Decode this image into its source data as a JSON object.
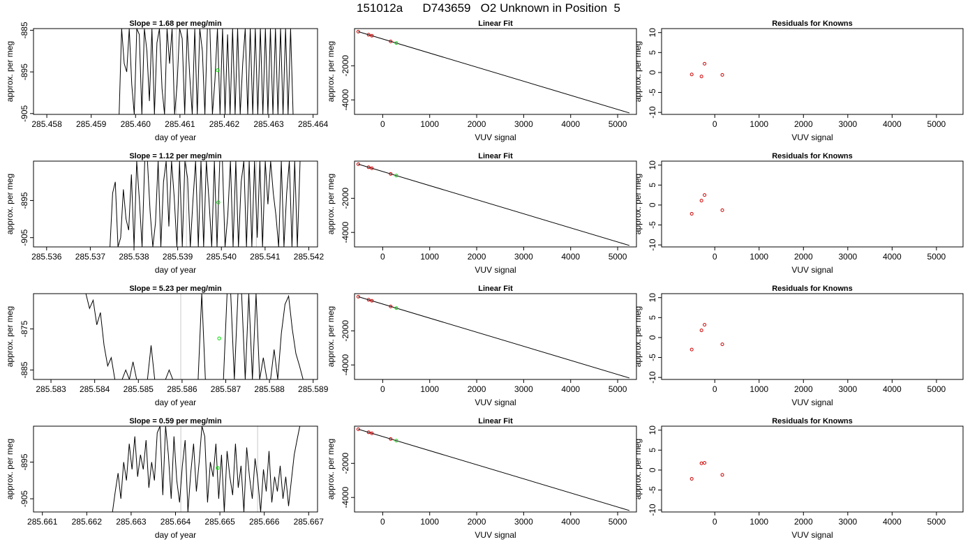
{
  "figure": {
    "title": "151012a      D743659   O2 Unknown in Position  5"
  },
  "colors": {
    "trace": "#000000",
    "unknown_point": "#00dd00",
    "known_point": "#cc0000",
    "marker_line": "#c8c8c8"
  },
  "chart_data": [
    {
      "type": "line",
      "title": "Slope =  1.68  per meg/min",
      "xlabel": "day of year",
      "ylabel": "approx. per meg",
      "xlim": [
        285.4577,
        285.4641
      ],
      "ylim": [
        -905.2,
        -884.6
      ],
      "xticks": [
        "285.458",
        "285.459",
        "285.460",
        "285.461",
        "285.462",
        "285.463",
        "285.464"
      ],
      "yticks": [
        "-885",
        "-895",
        "-905"
      ],
      "marker_x": [
        285.46092
      ],
      "unknown_point": {
        "x": 285.46185,
        "y": -894.6
      },
      "series": [
        {
          "x_start": 285.45963,
          "x_end": 285.46355,
          "values": [
            -905.2,
            -884.6,
            -893,
            -895,
            -884.6,
            -898,
            -905.2,
            -884.6,
            -886,
            -905.2,
            -884.6,
            -890,
            -902,
            -884.6,
            -905.2,
            -888,
            -884.6,
            -899,
            -905.2,
            -884.6,
            -893,
            -884.6,
            -905.2,
            -898,
            -884.6,
            -887,
            -905.2,
            -884.6,
            -896,
            -905.2,
            -884.6,
            -905.2,
            -884.6,
            -890,
            -905.2,
            -884.6,
            -884.6,
            -905.2,
            -897,
            -884.6,
            -905.2,
            -884.6,
            -905.2,
            -886,
            -905.2,
            -884.6,
            -905.2,
            -884.6,
            -905.2,
            -893,
            -884.6,
            -905.2,
            -884.6,
            -905.2,
            -884.6,
            -905.2,
            -884.6,
            -905.2,
            -884.6,
            -905.2,
            -884.6,
            -905.2,
            -884.6,
            -905.2,
            -884.6,
            -905.2,
            -884.6,
            -905.2,
            -884.6,
            -905.2
          ]
        }
      ]
    },
    {
      "type": "scatter",
      "title": "Linear Fit",
      "xlabel": "VUV signal",
      "ylabel": "approx. per meg",
      "xlim": [
        -600,
        5400
      ],
      "ylim": [
        -4850,
        180
      ],
      "xticks": [
        0,
        1000,
        2000,
        3000,
        4000,
        5000
      ],
      "yticks": [
        -2000,
        -4000
      ],
      "fit_line": {
        "x": [
          -520,
          5250
        ],
        "y": [
          0,
          -4765
        ]
      },
      "known_points": {
        "x": [
          -520,
          -300,
          -230,
          170
        ],
        "y": [
          0,
          -180,
          -240,
          -570
        ]
      },
      "unknown_point": {
        "x": 290,
        "y": -670
      }
    },
    {
      "type": "scatter",
      "title": "Residuals for Knowns",
      "xlabel": "VUV signal",
      "ylabel": "approx. per meg",
      "xlim": [
        -1200,
        5600
      ],
      "ylim": [
        -10.5,
        11
      ],
      "xticks": [
        0,
        1000,
        2000,
        3000,
        4000,
        5000
      ],
      "yticks": [
        -10,
        -5,
        0,
        5,
        10
      ],
      "points": {
        "x": [
          -520,
          -300,
          -230,
          170
        ],
        "y": [
          -0.5,
          -1.0,
          2.2,
          -0.6
        ]
      }
    },
    {
      "type": "line",
      "title": "Slope =  1.12  per meg/min",
      "xlabel": "day of year",
      "ylabel": "approx. per meg",
      "xlim": [
        285.5357,
        285.5422
      ],
      "ylim": [
        -907.5,
        -884.4
      ],
      "xticks": [
        "285.536",
        "285.537",
        "285.538",
        "285.539",
        "285.540",
        "285.541",
        "285.542"
      ],
      "yticks": [
        "-895",
        "-905"
      ],
      "marker_x": [
        285.5392,
        285.5408
      ],
      "unknown_point": {
        "x": 285.53993,
        "y": -895.5
      },
      "series": [
        {
          "x_start": 285.53745,
          "x_end": 285.5418,
          "values": [
            -907.5,
            -893,
            -890,
            -907.5,
            -905,
            -892,
            -900,
            -903,
            -888,
            -907.5,
            -884.4,
            -895,
            -907.5,
            -884.4,
            -884.4,
            -898,
            -907.5,
            -901,
            -884.4,
            -907.5,
            -890,
            -884.4,
            -902,
            -884.4,
            -894,
            -907.5,
            -884.4,
            -907.5,
            -884.4,
            -889,
            -907.5,
            -895,
            -884.4,
            -907.5,
            -884.4,
            -907.5,
            -884.4,
            -895,
            -907.5,
            -884.4,
            -907.5,
            -884.4,
            -884.4,
            -907.5,
            -899,
            -884.4,
            -907.5,
            -884.4,
            -907.5,
            -890,
            -884.4,
            -907.5,
            -884.4,
            -907.5,
            -884.4,
            -905,
            -884.4,
            -907.5,
            -884.4,
            -896,
            -884.4,
            -893,
            -899,
            -907.5,
            -884.4,
            -907.5,
            -893,
            -884.4,
            -907.5,
            -884.4,
            -907.5,
            -884.4
          ]
        }
      ]
    },
    {
      "type": "scatter",
      "title": "Linear Fit",
      "xlabel": "VUV signal",
      "ylabel": "approx. per meg",
      "xlim": [
        -600,
        5400
      ],
      "ylim": [
        -4850,
        180
      ],
      "xticks": [
        0,
        1000,
        2000,
        3000,
        4000,
        5000
      ],
      "yticks": [
        -2000,
        -4000
      ],
      "fit_line": {
        "x": [
          -520,
          5250
        ],
        "y": [
          0,
          -4765
        ]
      },
      "known_points": {
        "x": [
          -520,
          -300,
          -230,
          170
        ],
        "y": [
          0,
          -180,
          -240,
          -570
        ]
      },
      "unknown_point": {
        "x": 290,
        "y": -670
      }
    },
    {
      "type": "scatter",
      "title": "Residuals for Knowns",
      "xlabel": "VUV signal",
      "ylabel": "approx. per meg",
      "xlim": [
        -1200,
        5600
      ],
      "ylim": [
        -10.5,
        11
      ],
      "xticks": [
        0,
        1000,
        2000,
        3000,
        4000,
        5000
      ],
      "yticks": [
        -10,
        -5,
        0,
        5,
        10
      ],
      "points": {
        "x": [
          -520,
          -300,
          -230,
          170
        ],
        "y": [
          -2.2,
          1.1,
          2.5,
          -1.3
        ]
      }
    },
    {
      "type": "line",
      "title": "Slope =  5.23  per meg/min",
      "xlabel": "day of year",
      "ylabel": "approx. per meg",
      "xlim": [
        285.5826,
        285.5891
      ],
      "ylim": [
        -887.3,
        -866.4
      ],
      "xticks": [
        "285.583",
        "285.584",
        "285.585",
        "285.586",
        "285.587",
        "285.588",
        "285.589"
      ],
      "yticks": [
        "-875",
        "-885"
      ],
      "marker_x": [
        285.58597
      ],
      "unknown_point": {
        "x": 285.58685,
        "y": -877.3
      },
      "series": [
        {
          "x_start": 285.5838,
          "x_end": 285.58877,
          "values": [
            -866.4,
            -870,
            -868,
            -874,
            -871,
            -879,
            -884,
            -882,
            -887.3,
            -887.3,
            -887.3,
            -885,
            -887.3,
            -883,
            -887.3,
            -887.3,
            -887.3,
            -887.3,
            -879,
            -887.3,
            -887.3,
            -887.3,
            -887.3,
            -885,
            -887.3,
            -887.3,
            -887.3,
            -887.3,
            -887.3,
            -887.3,
            -887.3,
            -887.3,
            -866.4,
            -887.3,
            -887.3,
            -887.3,
            -887.3,
            -887.3,
            -887.3,
            -866.4,
            -866.4,
            -887.3,
            -866.4,
            -866.4,
            -887.3,
            -866.4,
            -887.3,
            -866.4,
            -887.3,
            -882,
            -887.3,
            -887.3,
            -880,
            -887.3,
            -876,
            -869,
            -867,
            -875,
            -881,
            -884,
            -887.3
          ]
        }
      ]
    },
    {
      "type": "scatter",
      "title": "Linear Fit",
      "xlabel": "VUV signal",
      "ylabel": "approx. per meg",
      "xlim": [
        -600,
        5400
      ],
      "ylim": [
        -4850,
        180
      ],
      "xticks": [
        0,
        1000,
        2000,
        3000,
        4000,
        5000
      ],
      "yticks": [
        -2000,
        -4000
      ],
      "fit_line": {
        "x": [
          -520,
          5250
        ],
        "y": [
          0,
          -4765
        ]
      },
      "known_points": {
        "x": [
          -520,
          -300,
          -230,
          170
        ],
        "y": [
          0,
          -180,
          -240,
          -570
        ]
      },
      "unknown_point": {
        "x": 290,
        "y": -670
      }
    },
    {
      "type": "scatter",
      "title": "Residuals for Knowns",
      "xlabel": "VUV signal",
      "ylabel": "approx. per meg",
      "xlim": [
        -1200,
        5600
      ],
      "ylim": [
        -10.5,
        11
      ],
      "xticks": [
        0,
        1000,
        2000,
        3000,
        4000,
        5000
      ],
      "yticks": [
        -10,
        -5,
        0,
        5,
        10
      ],
      "points": {
        "x": [
          -520,
          -300,
          -230,
          170
        ],
        "y": [
          -3.0,
          1.8,
          3.2,
          -1.7
        ]
      }
    },
    {
      "type": "line",
      "title": "Slope =  0.59  per meg/min",
      "xlabel": "day of year",
      "ylabel": "approx. per meg",
      "xlim": [
        285.6608,
        285.6672
      ],
      "ylim": [
        -908.6,
        -885.2
      ],
      "xticks": [
        "285.661",
        "285.662",
        "285.663",
        "285.664",
        "285.665",
        "285.666",
        "285.667"
      ],
      "yticks": [
        "-895",
        "-905"
      ],
      "marker_x": [
        285.66412,
        285.66585
      ],
      "unknown_point": {
        "x": 285.66495,
        "y": -896.6
      },
      "series": [
        {
          "x_start": 285.66258,
          "x_end": 285.6668,
          "values": [
            -908.6,
            -903,
            -898,
            -905,
            -895,
            -900,
            -890,
            -897,
            -888,
            -899,
            -893,
            -897,
            -889,
            -902,
            -895,
            -900,
            -887,
            -885.2,
            -904,
            -885.2,
            -893,
            -905,
            -888,
            -900,
            -906,
            -896,
            -889,
            -908.6,
            -898,
            -890,
            -903,
            -895,
            -885.2,
            -888,
            -906,
            -895,
            -899,
            -890,
            -905,
            -893,
            -908.6,
            -892,
            -899,
            -904,
            -890,
            -902,
            -896,
            -908.6,
            -891,
            -899,
            -905,
            -894,
            -900,
            -908.6,
            -897,
            -903,
            -892,
            -906,
            -899,
            -903,
            -896,
            -905,
            -899,
            -907,
            -900,
            -893,
            -889,
            -885.2
          ]
        }
      ]
    },
    {
      "type": "scatter",
      "title": "Linear Fit",
      "xlabel": "VUV signal",
      "ylabel": "approx. per meg",
      "xlim": [
        -600,
        5400
      ],
      "ylim": [
        -4850,
        180
      ],
      "xticks": [
        0,
        1000,
        2000,
        3000,
        4000,
        5000
      ],
      "yticks": [
        -2000,
        -4000
      ],
      "fit_line": {
        "x": [
          -520,
          5250
        ],
        "y": [
          0,
          -4765
        ]
      },
      "known_points": {
        "x": [
          -520,
          -300,
          -230,
          170
        ],
        "y": [
          0,
          -180,
          -240,
          -570
        ]
      },
      "unknown_point": {
        "x": 290,
        "y": -670
      }
    },
    {
      "type": "scatter",
      "title": "Residuals for Knowns",
      "xlabel": "VUV signal",
      "ylabel": "approx. per meg",
      "xlim": [
        -1200,
        5600
      ],
      "ylim": [
        -10.5,
        11
      ],
      "xticks": [
        0,
        1000,
        2000,
        3000,
        4000,
        5000
      ],
      "yticks": [
        -10,
        -5,
        0,
        5,
        10
      ],
      "points": {
        "x": [
          -520,
          -300,
          -230,
          170
        ],
        "y": [
          -2.2,
          1.7,
          1.8,
          -1.2
        ]
      }
    }
  ]
}
